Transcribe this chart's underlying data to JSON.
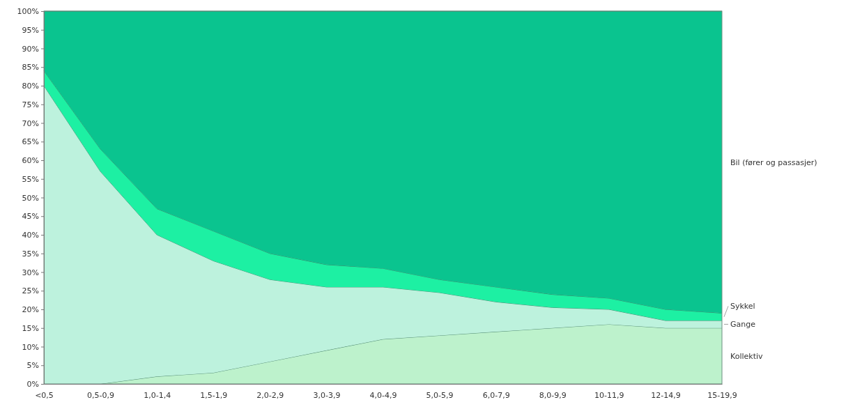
{
  "chart_data": {
    "type": "area",
    "stacked": true,
    "legend": false,
    "categories": [
      "<0,5",
      "0,5-0,9",
      "1,0-1,4",
      "1,5-1,9",
      "2,0-2,9",
      "3,0-3,9",
      "4,0-4,9",
      "5,0-5,9",
      "6,0-7,9",
      "8,0-9,9",
      "10-11,9",
      "12-14,9",
      "15-19,9"
    ],
    "series": [
      {
        "name": "Kollektiv",
        "color": "#bdf2cc",
        "values": [
          0,
          0,
          2,
          3,
          6,
          9,
          12,
          13,
          14,
          15,
          16,
          15,
          15
        ]
      },
      {
        "name": "Gange",
        "color": "#bdf2dd",
        "values": [
          80,
          57,
          38,
          30,
          22,
          17,
          14,
          11.5,
          8,
          5.5,
          4,
          2,
          2
        ]
      },
      {
        "name": "Sykkel",
        "color": "#1df0a3",
        "values": [
          4,
          6,
          7,
          8,
          7,
          6,
          5,
          3.5,
          4,
          3.5,
          3,
          3,
          2
        ]
      },
      {
        "name": "Bil (fører og passasjer)",
        "color": "#0ac48f",
        "values": [
          16,
          37,
          53,
          59,
          65,
          68,
          69,
          72,
          74,
          76,
          77,
          80,
          81
        ]
      }
    ],
    "ylim": [
      0,
      100
    ],
    "yticks": [
      {
        "value": 0,
        "label": "0%"
      },
      {
        "value": 5,
        "label": "5%"
      },
      {
        "value": 10,
        "label": "10%"
      },
      {
        "value": 15,
        "label": "15%"
      },
      {
        "value": 20,
        "label": "20%"
      },
      {
        "value": 25,
        "label": "25%"
      },
      {
        "value": 30,
        "label": "30%"
      },
      {
        "value": 35,
        "label": "35%"
      },
      {
        "value": 40,
        "label": "40%"
      },
      {
        "value": 45,
        "label": "45%"
      },
      {
        "value": 50,
        "label": "50%"
      },
      {
        "value": 55,
        "label": "55%"
      },
      {
        "value": 60,
        "label": "60%"
      },
      {
        "value": 65,
        "label": "65%"
      },
      {
        "value": 70,
        "label": "70%"
      },
      {
        "value": 75,
        "label": "75%"
      },
      {
        "value": 80,
        "label": "80%"
      },
      {
        "value": 85,
        "label": "85%"
      },
      {
        "value": 90,
        "label": "90%"
      },
      {
        "value": 95,
        "label": "95%"
      },
      {
        "value": 100,
        "label": "100%"
      }
    ]
  }
}
